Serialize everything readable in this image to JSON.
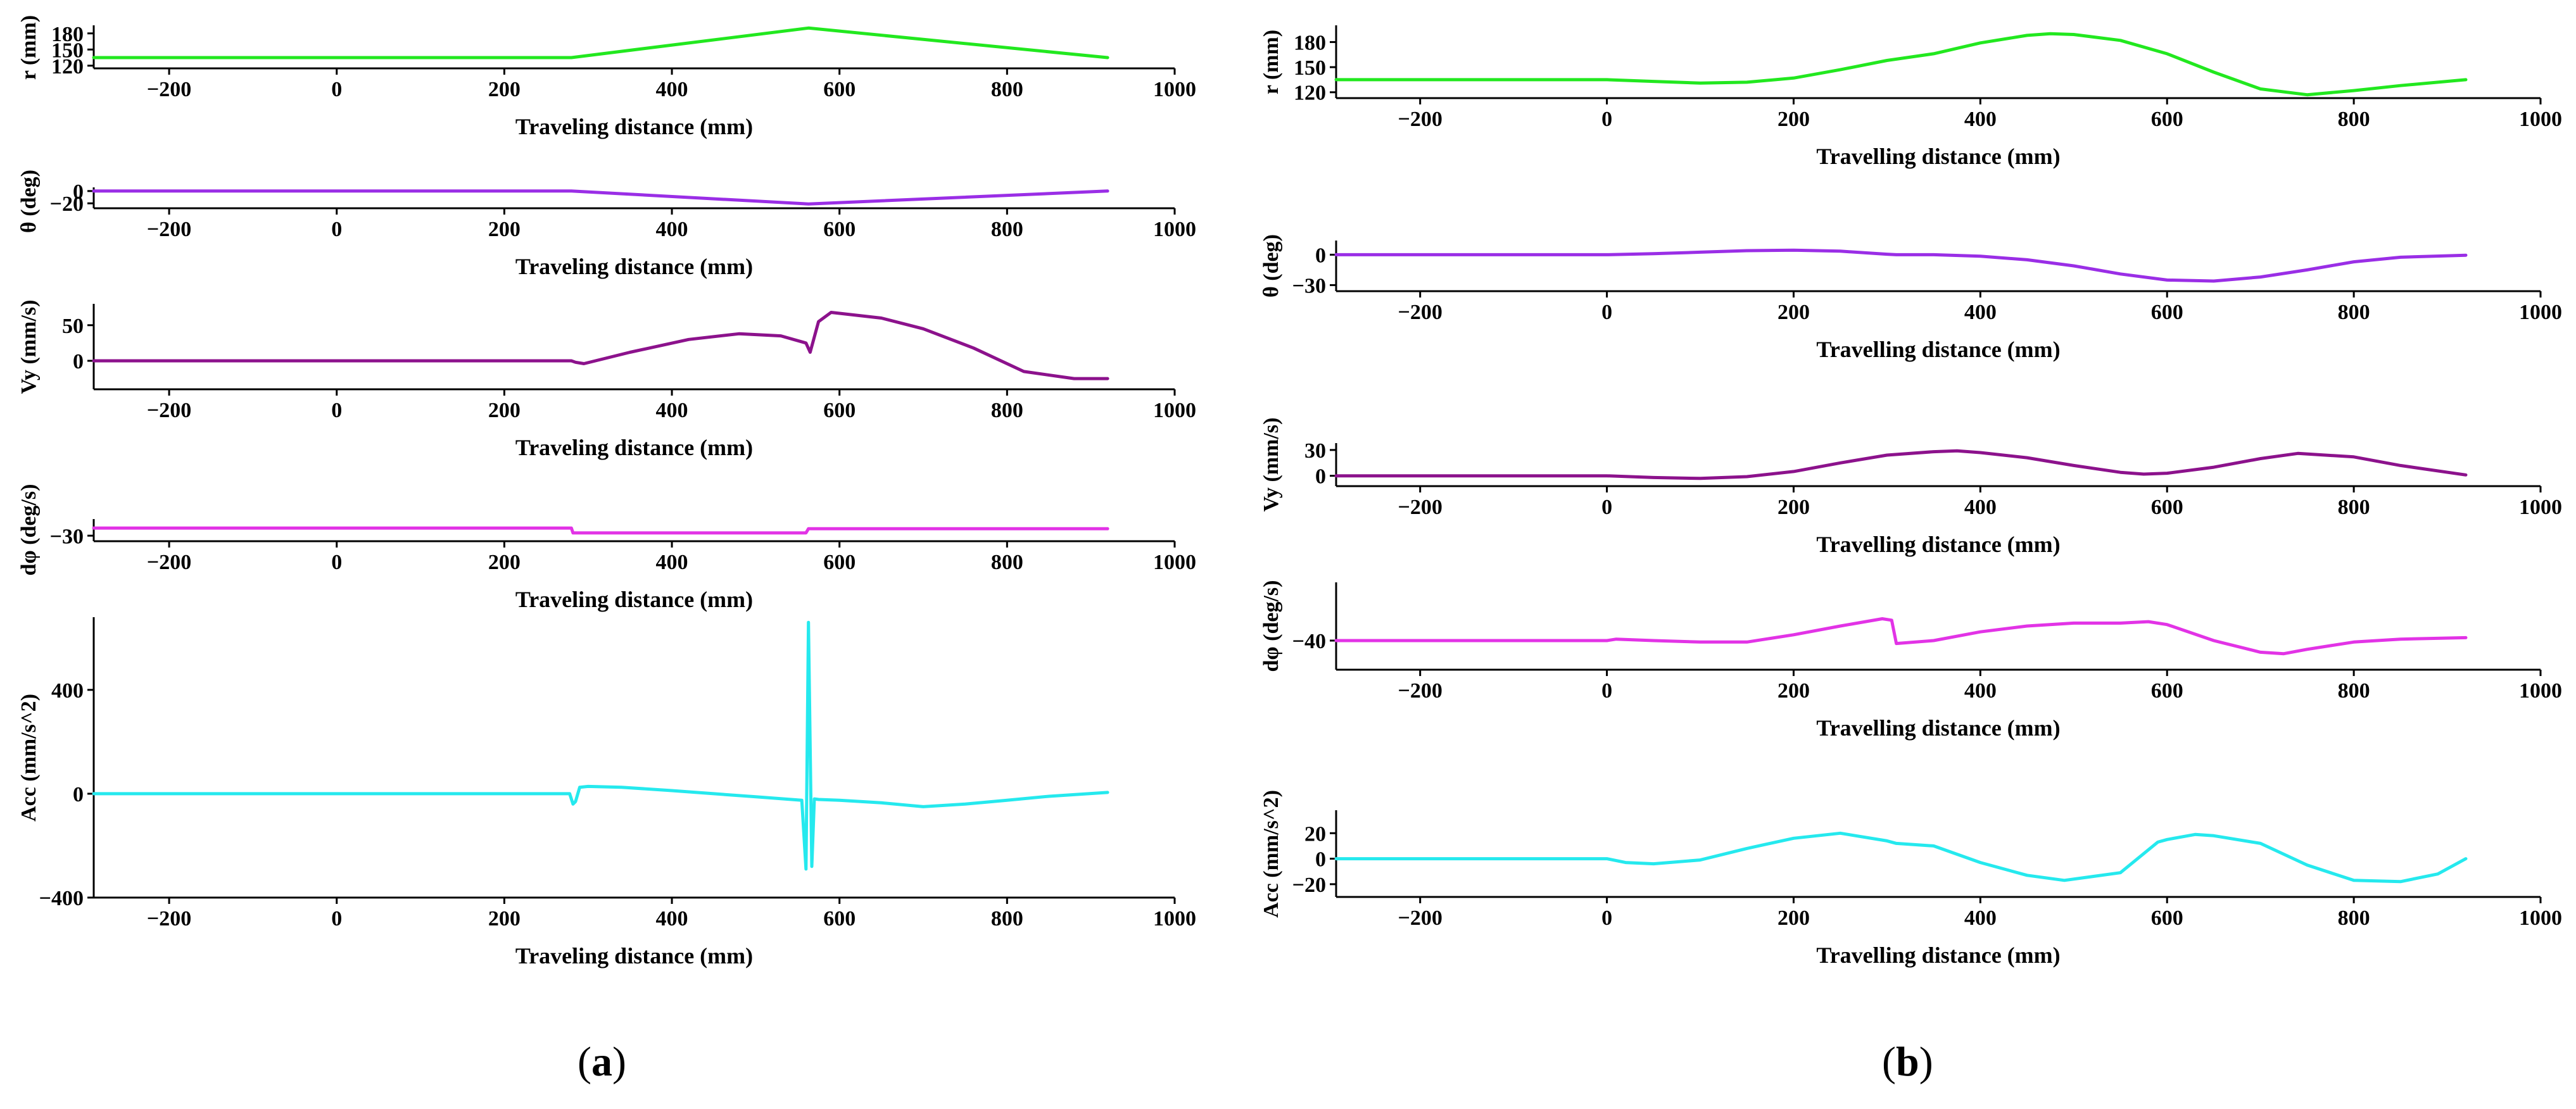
{
  "panel_labels": {
    "a": "a",
    "b": "b"
  },
  "chart_data": [
    {
      "panel": "a",
      "type": "line",
      "color": "#22e81f",
      "ylabel": "r (mm)",
      "xlabel": "Traveling distance (mm)",
      "xlim": [
        -290,
        1000
      ],
      "ylim": [
        115,
        195
      ],
      "xticks": [
        -200,
        0,
        200,
        400,
        600,
        800,
        1000
      ],
      "yticks": [
        120,
        150,
        180
      ],
      "x": [
        -290,
        280,
        563,
        920
      ],
      "y": [
        135,
        135,
        190,
        135
      ]
    },
    {
      "panel": "a",
      "type": "line",
      "color": "#9a2ee6",
      "ylabel": "θ (deg)",
      "xlabel": "Traveling distance (mm)",
      "xlim": [
        -290,
        1000
      ],
      "ylim": [
        -28,
        6
      ],
      "xticks": [
        -200,
        0,
        200,
        400,
        600,
        800,
        1000
      ],
      "yticks": [
        -20,
        0
      ],
      "x": [
        -290,
        280,
        563,
        920
      ],
      "y": [
        0,
        0,
        -21,
        0
      ]
    },
    {
      "panel": "a",
      "type": "line",
      "color": "#8c128c",
      "ylabel": "Vy (mm/s)",
      "xlabel": "Traveling distance (mm)",
      "xlim": [
        -290,
        1000
      ],
      "ylim": [
        -40,
        80
      ],
      "xticks": [
        -200,
        0,
        200,
        400,
        600,
        800,
        1000
      ],
      "yticks": [
        0,
        50
      ],
      "x": [
        -290,
        280,
        285,
        295,
        350,
        420,
        480,
        530,
        560,
        565,
        575,
        590,
        650,
        700,
        760,
        820,
        880,
        920
      ],
      "y": [
        0,
        0,
        -2,
        -4,
        12,
        30,
        38,
        35,
        25,
        12,
        55,
        68,
        60,
        45,
        18,
        -15,
        -25,
        -25
      ]
    },
    {
      "panel": "a",
      "type": "line",
      "color": "#e233e6",
      "ylabel": "dφ (deg/s)",
      "xlabel": "Traveling distance (mm)",
      "xlim": [
        -290,
        1000
      ],
      "ylim": [
        -34,
        -18
      ],
      "xticks": [
        -200,
        0,
        200,
        400,
        600,
        800,
        1000
      ],
      "yticks": [
        -30
      ],
      "x": [
        -290,
        280,
        282,
        560,
        563,
        920
      ],
      "y": [
        -24.5,
        -24.5,
        -28,
        -28,
        -25,
        -25
      ]
    },
    {
      "panel": "a",
      "type": "line",
      "color": "#25e9ee",
      "ylabel": "Acc (mm/s^2)",
      "xlabel": "Traveling distance (mm)",
      "xlim": [
        -290,
        1000
      ],
      "ylim": [
        -400,
        680
      ],
      "xticks": [
        -200,
        0,
        200,
        400,
        600,
        800,
        1000
      ],
      "yticks": [
        -400,
        0,
        400
      ],
      "x": [
        -290,
        278,
        282,
        285,
        290,
        300,
        340,
        400,
        450,
        500,
        555,
        560,
        563,
        567,
        570,
        575,
        600,
        650,
        700,
        750,
        800,
        850,
        920
      ],
      "y": [
        0,
        0,
        -40,
        -30,
        25,
        28,
        25,
        12,
        0,
        -12,
        -25,
        -290,
        660,
        -280,
        -20,
        -22,
        -25,
        -35,
        -50,
        -40,
        -25,
        -10,
        5
      ]
    },
    {
      "panel": "b",
      "type": "line",
      "color": "#22e81f",
      "ylabel": "r (mm)",
      "xlabel": "Travelling distance (mm)",
      "xlim": [
        -290,
        1000
      ],
      "ylim": [
        113,
        200
      ],
      "xticks": [
        -200,
        0,
        200,
        400,
        600,
        800,
        1000
      ],
      "yticks": [
        120,
        150,
        180
      ],
      "x": [
        -290,
        0,
        50,
        100,
        150,
        200,
        250,
        300,
        350,
        400,
        450,
        475,
        500,
        550,
        600,
        650,
        700,
        750,
        800,
        850,
        920
      ],
      "y": [
        135,
        135,
        133,
        131,
        132,
        137,
        147,
        158,
        166,
        179,
        188,
        190,
        189,
        182,
        166,
        144,
        124,
        117,
        122,
        128,
        135
      ]
    },
    {
      "panel": "b",
      "type": "line",
      "color": "#9a2ee6",
      "ylabel": "θ (deg)",
      "xlabel": "Travelling distance (mm)",
      "xlim": [
        -290,
        1000
      ],
      "ylim": [
        -36,
        14
      ],
      "xticks": [
        -200,
        0,
        200,
        400,
        600,
        800,
        1000
      ],
      "yticks": [
        -30,
        0
      ],
      "x": [
        -290,
        0,
        50,
        100,
        150,
        200,
        250,
        300,
        310,
        350,
        400,
        450,
        500,
        550,
        600,
        650,
        700,
        750,
        800,
        850,
        920
      ],
      "y": [
        0,
        0,
        1,
        2.5,
        4,
        4.5,
        3.5,
        0.5,
        0,
        0,
        -1.5,
        -5,
        -11,
        -19,
        -25,
        -26,
        -22,
        -15,
        -7,
        -2.5,
        -0.5
      ]
    },
    {
      "panel": "b",
      "type": "line",
      "color": "#8c128c",
      "ylabel": "Vy (mm/s)",
      "xlabel": "Travelling distance (mm)",
      "xlim": [
        -290,
        1000
      ],
      "ylim": [
        -12,
        38
      ],
      "xticks": [
        -200,
        0,
        200,
        400,
        600,
        800,
        1000
      ],
      "yticks": [
        0,
        30
      ],
      "x": [
        -290,
        0,
        50,
        100,
        150,
        200,
        250,
        300,
        350,
        375,
        400,
        450,
        500,
        550,
        575,
        600,
        650,
        700,
        740,
        800,
        850,
        920
      ],
      "y": [
        0,
        0,
        -2,
        -3,
        -1,
        5,
        15,
        24,
        28,
        29,
        27,
        21,
        12,
        4,
        2,
        3,
        10,
        20,
        26,
        22,
        12,
        1
      ]
    },
    {
      "panel": "b",
      "type": "line",
      "color": "#e233e6",
      "ylabel": "dφ (deg/s)",
      "xlabel": "Travelling distance (mm)",
      "xlim": [
        -290,
        1000
      ],
      "ylim": [
        -50,
        -20
      ],
      "xticks": [
        -200,
        0,
        200,
        400,
        600,
        800,
        1000
      ],
      "yticks": [
        -40
      ],
      "x": [
        -290,
        0,
        10,
        50,
        100,
        150,
        200,
        250,
        295,
        305,
        310,
        350,
        400,
        450,
        500,
        550,
        580,
        600,
        650,
        700,
        725,
        750,
        800,
        850,
        920
      ],
      "y": [
        -40,
        -40,
        -39.5,
        -40,
        -40.5,
        -40.5,
        -38,
        -35,
        -32.5,
        -33,
        -41,
        -40,
        -37,
        -35,
        -34,
        -34,
        -33.5,
        -34.5,
        -40,
        -44,
        -44.5,
        -43,
        -40.5,
        -39.5,
        -39
      ]
    },
    {
      "panel": "b",
      "type": "line",
      "color": "#25e9ee",
      "ylabel": "Acc (mm/s^2)",
      "xlabel": "Travelling distance (mm)",
      "xlim": [
        -290,
        1000
      ],
      "ylim": [
        -30,
        38
      ],
      "xticks": [
        -200,
        0,
        200,
        400,
        600,
        800,
        1000
      ],
      "yticks": [
        -20,
        0,
        20
      ],
      "x": [
        -290,
        0,
        20,
        50,
        100,
        150,
        200,
        250,
        300,
        310,
        350,
        400,
        450,
        490,
        550,
        590,
        600,
        630,
        650,
        700,
        750,
        800,
        850,
        890,
        920
      ],
      "y": [
        0,
        0,
        -3,
        -4,
        -1,
        8,
        16,
        20,
        14,
        12,
        10,
        -3,
        -13,
        -17,
        -11,
        13,
        15,
        19,
        18,
        12,
        -5,
        -17,
        -18,
        -12,
        0
      ]
    }
  ]
}
